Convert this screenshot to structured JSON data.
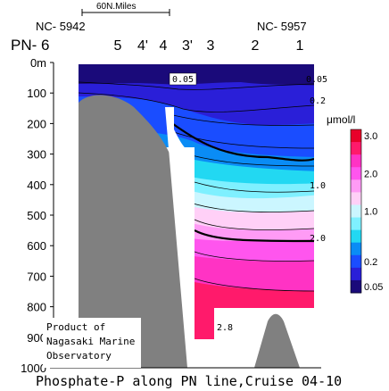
{
  "chart_data": {
    "type": "heatmap",
    "title": "Phosphate-P along PN line,Cruise 04-10",
    "scale_label": "60N.Miles",
    "ship_labels": [
      "NC- 5942",
      "NC- 5957"
    ],
    "line_label": "PN- 6",
    "stations": [
      "5",
      "4'",
      "4",
      "3'",
      "3",
      "2",
      "1"
    ],
    "y_ticks": [
      "0m",
      "100",
      "200",
      "300",
      "400",
      "500",
      "600",
      "700",
      "800",
      "900",
      "1000"
    ],
    "ylim": [
      0,
      1000
    ],
    "units": "μmol/l",
    "colorbar_ticks": [
      "3.0",
      "2.0",
      "1.0",
      "0.2",
      "0.05"
    ],
    "contour_labels": [
      "0.05",
      "0.05",
      "0.2",
      "1.0",
      "2.0",
      "2.8"
    ],
    "legend_levels": [
      {
        "level": 3.0,
        "color": "#e8002a"
      },
      {
        "level": 2.8,
        "color": "#ff1a6b"
      },
      {
        "level": 2.4,
        "color": "#ff33c4"
      },
      {
        "level": 2.0,
        "color": "#ff55ee"
      },
      {
        "level": 1.7,
        "color": "#ff9bf5"
      },
      {
        "level": 1.4,
        "color": "#ffd0f7"
      },
      {
        "level": 1.0,
        "color": "#cbf6ff"
      },
      {
        "level": 0.8,
        "color": "#7ff0ff"
      },
      {
        "level": 0.6,
        "color": "#22d8f2"
      },
      {
        "level": 0.4,
        "color": "#0a8cf5"
      },
      {
        "level": 0.2,
        "color": "#1a4dff"
      },
      {
        "level": 0.1,
        "color": "#2a1fd8"
      },
      {
        "level": 0.05,
        "color": "#1a0a7a"
      }
    ],
    "credit_lines": [
      "Product of",
      "Nagasaki Marine",
      "Observatory"
    ],
    "bottom_color": "#808080"
  }
}
